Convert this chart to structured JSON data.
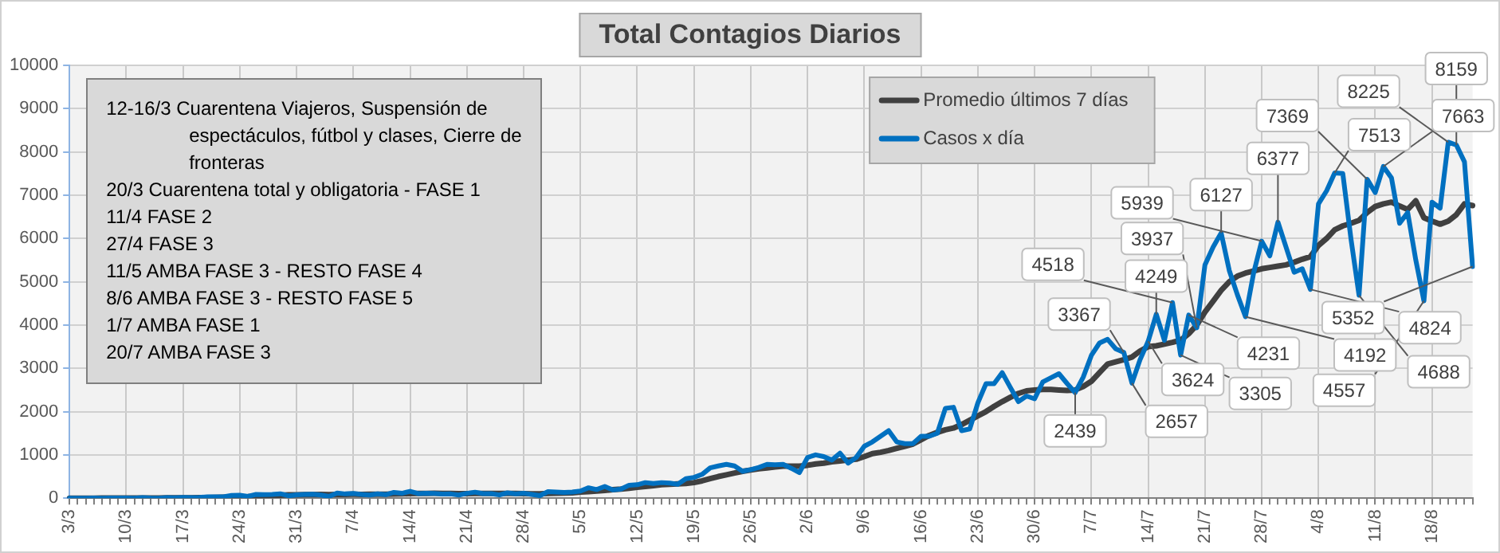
{
  "chart_data": {
    "type": "line",
    "title": "Total Contagios Diarios",
    "annotations": [
      "12-16/3  Cuarentena Viajeros, Suspensión de espectáculos, fútbol y clases, Cierre de fronteras",
      "20/3 Cuarentena total y obligatoria - FASE 1",
      "11/4 FASE 2",
      "27/4 FASE 3",
      "11/5 AMBA FASE 3 - RESTO FASE 4",
      "8/6 AMBA FASE 3 - RESTO FASE 5",
      "1/7 AMBA FASE 1",
      "20/7 AMBA FASE 3"
    ],
    "categories": [
      "3/3",
      null,
      null,
      null,
      null,
      null,
      null,
      "10/3",
      null,
      null,
      null,
      null,
      null,
      null,
      "17/3",
      null,
      null,
      null,
      null,
      null,
      null,
      "24/3",
      null,
      null,
      null,
      null,
      null,
      null,
      "31/3",
      null,
      null,
      null,
      null,
      null,
      null,
      "7/4",
      null,
      null,
      null,
      null,
      null,
      null,
      "14/4",
      null,
      null,
      null,
      null,
      null,
      null,
      "21/4",
      null,
      null,
      null,
      null,
      null,
      null,
      "28/4",
      null,
      null,
      null,
      null,
      null,
      null,
      "5/5",
      null,
      null,
      null,
      null,
      null,
      null,
      "12/5",
      null,
      null,
      null,
      null,
      null,
      null,
      "19/5",
      null,
      null,
      null,
      null,
      null,
      null,
      "26/5",
      null,
      null,
      null,
      null,
      null,
      null,
      "2/6",
      null,
      null,
      null,
      null,
      null,
      null,
      "9/6",
      null,
      null,
      null,
      null,
      null,
      null,
      "16/6",
      null,
      null,
      null,
      null,
      null,
      null,
      "23/6",
      null,
      null,
      null,
      null,
      null,
      null,
      "30/6",
      null,
      null,
      null,
      null,
      null,
      null,
      "7/7",
      null,
      null,
      null,
      null,
      null,
      null,
      "14/7",
      null,
      null,
      null,
      null,
      null,
      null,
      "21/7",
      null,
      null,
      null,
      null,
      null,
      null,
      "28/7",
      null,
      null,
      null,
      null,
      null,
      null,
      "4/8",
      null,
      null,
      null,
      null,
      null,
      null,
      "11/8",
      null,
      null,
      null,
      null,
      null,
      null,
      "18/8",
      null,
      null,
      null,
      null,
      null
    ],
    "series": [
      {
        "name": "Promedio últimos 7 días",
        "color": "#404040",
        "values": [
          1,
          1,
          1,
          1,
          2,
          2,
          3,
          4,
          4,
          5,
          5,
          5,
          6,
          7,
          8,
          9,
          11,
          14,
          17,
          20,
          26,
          32,
          37,
          47,
          55,
          62,
          70,
          75,
          77,
          80,
          82,
          85,
          82,
          85,
          88,
          90,
          88,
          90,
          90,
          93,
          96,
          100,
          105,
          108,
          110,
          112,
          110,
          108,
          105,
          105,
          108,
          110,
          108,
          110,
          110,
          110,
          105,
          100,
          100,
          110,
          115,
          120,
          125,
          140,
          150,
          165,
          180,
          195,
          210,
          230,
          250,
          270,
          290,
          310,
          320,
          330,
          340,
          360,
          400,
          450,
          500,
          540,
          580,
          620,
          650,
          680,
          700,
          720,
          740,
          740,
          740,
          760,
          790,
          810,
          840,
          860,
          880,
          900,
          960,
          1030,
          1060,
          1100,
          1150,
          1200,
          1250,
          1350,
          1450,
          1520,
          1580,
          1620,
          1700,
          1800,
          1900,
          2000,
          2120,
          2230,
          2330,
          2420,
          2480,
          2500,
          2510,
          2510,
          2500,
          2490,
          2500,
          2580,
          2700,
          2900,
          3100,
          3150,
          3200,
          3260,
          3400,
          3500,
          3520,
          3560,
          3600,
          3650,
          3800,
          4000,
          4300,
          4550,
          4800,
          5000,
          5130,
          5200,
          5250,
          5300,
          5330,
          5360,
          5390,
          5450,
          5520,
          5580,
          5840,
          6000,
          6200,
          6290,
          6350,
          6420,
          6600,
          6740,
          6800,
          6840,
          6750,
          6670,
          6870,
          6480,
          6400,
          6330,
          6400,
          6550,
          6800,
          6760
        ]
      },
      {
        "name": "Casos x día",
        "color": "#0070c0",
        "values": [
          1,
          0,
          0,
          2,
          1,
          3,
          2,
          5,
          1,
          12,
          3,
          0,
          11,
          10,
          15,
          14,
          18,
          30,
          31,
          30,
          63,
          67,
          41,
          86,
          80,
          87,
          101,
          55,
          75,
          88,
          90,
          72,
          40,
          120,
          98,
          108,
          88,
          71,
          100,
          80,
          134,
          113,
          158,
          105,
          114,
          109,
          97,
          98,
          72,
          111,
          139,
          104,
          106,
          74,
          123,
          100,
          112,
          88,
          60,
          150,
          140,
          130,
          140,
          165,
          240,
          200,
          270,
          190,
          210,
          300,
          310,
          360,
          340,
          360,
          350,
          320,
          450,
          480,
          550,
          700,
          745,
          780,
          745,
          620,
          660,
          710,
          780,
          770,
          780,
          690,
          590,
          940,
          1000,
          960,
          880,
          1040,
          810,
          940,
          1200,
          1300,
          1430,
          1560,
          1300,
          1260,
          1260,
          1430,
          1430,
          1500,
          2076,
          2100,
          1560,
          1600,
          2200,
          2644,
          2644,
          2900,
          2560,
          2231,
          2360,
          2295,
          2683,
          2780,
          2876,
          2650,
          2439,
          2800,
          3300,
          3584,
          3670,
          3450,
          3367,
          2657,
          3200,
          3624,
          4249,
          3645,
          4518,
          3305,
          4231,
          3937,
          5390,
          5800,
          6127,
          5260,
          4700,
          4192,
          5200,
          5939,
          5600,
          6377,
          5800,
          5220,
          5300,
          4824,
          6800,
          7100,
          7513,
          7500,
          6000,
          4688,
          7369,
          7060,
          7663,
          7400,
          6350,
          6600,
          5500,
          4557,
          6840,
          6700,
          8225,
          8159,
          7770,
          5352
        ],
        "value_labels": [
          null,
          null,
          null,
          null,
          null,
          null,
          null,
          null,
          null,
          null,
          null,
          null,
          null,
          null,
          null,
          null,
          null,
          null,
          null,
          null,
          null,
          null,
          null,
          null,
          null,
          null,
          null,
          null,
          null,
          null,
          null,
          null,
          null,
          null,
          null,
          null,
          null,
          null,
          null,
          null,
          null,
          null,
          null,
          null,
          null,
          null,
          null,
          null,
          null,
          null,
          null,
          null,
          null,
          null,
          null,
          null,
          null,
          null,
          null,
          null,
          null,
          null,
          null,
          null,
          null,
          null,
          null,
          null,
          null,
          null,
          null,
          null,
          null,
          null,
          null,
          null,
          null,
          null,
          null,
          null,
          null,
          null,
          null,
          null,
          null,
          null,
          null,
          null,
          null,
          null,
          null,
          null,
          null,
          null,
          null,
          null,
          null,
          null,
          null,
          null,
          null,
          null,
          null,
          null,
          null,
          null,
          null,
          null,
          null,
          null,
          null,
          null,
          null,
          null,
          null,
          null,
          null,
          null,
          null,
          null,
          null,
          null,
          null,
          null,
          "2439",
          null,
          null,
          null,
          null,
          null,
          "3367",
          "2657",
          null,
          "3624",
          "4249",
          null,
          "4518",
          "3305",
          "4231",
          "3937",
          null,
          null,
          "6127",
          null,
          null,
          "4192",
          null,
          "5939",
          null,
          "6377",
          null,
          null,
          null,
          "4824",
          null,
          null,
          "7513",
          null,
          null,
          "4688",
          "7369",
          null,
          "7663",
          null,
          null,
          null,
          null,
          "4557",
          null,
          null,
          "8225",
          "8159",
          null,
          "5352"
        ]
      }
    ],
    "ylim": [
      0,
      10000
    ],
    "yticks": [
      0,
      1000,
      2000,
      3000,
      4000,
      5000,
      6000,
      7000,
      8000,
      9000,
      10000
    ],
    "grid": true,
    "legend": "top right"
  }
}
